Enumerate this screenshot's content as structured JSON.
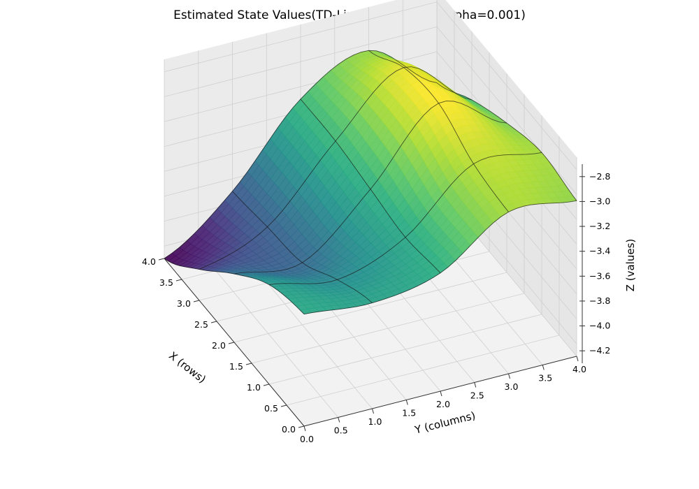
{
  "chart_data": {
    "type": "surface",
    "title": "Estimated State Values(TD-Linear_fourierq-3_alpha=0.001)",
    "xlabel": "X (rows)",
    "ylabel": "Y (columns)",
    "zlabel": "Z (values)",
    "xlim": [
      0,
      4
    ],
    "ylim": [
      0,
      4
    ],
    "zlim": [
      -4.3,
      -2.7
    ],
    "x_ticks": [
      "0.0",
      "0.5",
      "1.0",
      "1.5",
      "2.0",
      "2.5",
      "3.0",
      "3.5",
      "4.0"
    ],
    "y_ticks": [
      "0.0",
      "0.5",
      "1.0",
      "1.5",
      "2.0",
      "2.5",
      "3.0",
      "3.5",
      "4.0"
    ],
    "z_ticks": [
      "−2.8",
      "−3.0",
      "−3.2",
      "−3.4",
      "−3.6",
      "−3.8",
      "−4.0",
      "−4.2"
    ],
    "colormap": "viridis",
    "grid": true,
    "x": [
      0,
      1,
      2,
      3,
      4
    ],
    "y": [
      0,
      1,
      2,
      3,
      4
    ],
    "z": [
      [
        -3.4,
        -3.45,
        -3.35,
        -3.0,
        -3.05
      ],
      [
        -3.5,
        -3.6,
        -3.4,
        -2.95,
        -3.0
      ],
      [
        -3.75,
        -3.8,
        -3.35,
        -2.8,
        -3.1
      ],
      [
        -4.05,
        -3.85,
        -3.3,
        -2.85,
        -3.25
      ],
      [
        -4.3,
        -3.9,
        -3.3,
        -3.05,
        -3.45
      ]
    ]
  }
}
